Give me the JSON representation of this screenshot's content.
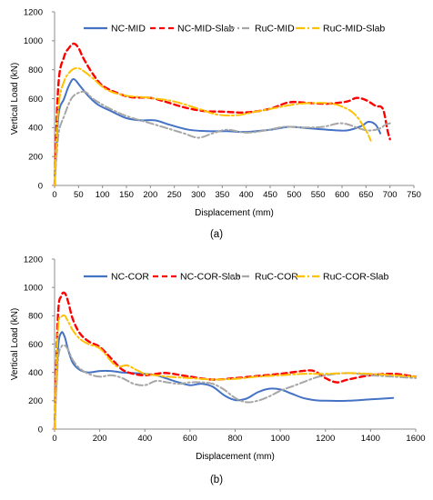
{
  "chart_data": [
    {
      "type": "line",
      "caption": "(a)",
      "xlabel": "Displacement (mm)",
      "ylabel": "Vertical Load (kN)",
      "xlim": [
        0,
        750
      ],
      "ylim": [
        0,
        1200
      ],
      "xticks": [
        0,
        50,
        100,
        150,
        200,
        250,
        300,
        350,
        400,
        450,
        500,
        550,
        600,
        650,
        700,
        750
      ],
      "yticks": [
        0,
        200,
        400,
        600,
        800,
        1000,
        1200
      ],
      "grid": false,
      "legend": "top",
      "series": [
        {
          "name": "NC-MID",
          "color": "#4472C4",
          "dash": "solid",
          "x": [
            0,
            8,
            20,
            30,
            40,
            55,
            70,
            90,
            120,
            150,
            180,
            210,
            240,
            280,
            320,
            360,
            400,
            450,
            490,
            530,
            570,
            610,
            640,
            655,
            670,
            680
          ],
          "y": [
            0,
            480,
            600,
            690,
            735,
            680,
            620,
            560,
            510,
            465,
            450,
            450,
            420,
            385,
            375,
            375,
            370,
            385,
            405,
            395,
            385,
            380,
            410,
            440,
            420,
            360
          ]
        },
        {
          "name": "NC-MID-Slab",
          "color": "#FF0000",
          "dash": "6,4",
          "x": [
            0,
            8,
            20,
            30,
            40,
            50,
            60,
            80,
            100,
            130,
            160,
            200,
            230,
            270,
            310,
            350,
            400,
            450,
            490,
            530,
            570,
            610,
            630,
            650,
            670,
            685,
            695,
            700
          ],
          "y": [
            0,
            700,
            890,
            950,
            980,
            950,
            880,
            770,
            690,
            640,
            610,
            605,
            580,
            540,
            515,
            510,
            505,
            530,
            575,
            570,
            565,
            580,
            605,
            590,
            550,
            530,
            380,
            320
          ]
        },
        {
          "name": "RuC-MID",
          "color": "#A6A6A6",
          "dash": "8,3,2,3",
          "x": [
            0,
            8,
            20,
            35,
            50,
            65,
            80,
            110,
            150,
            200,
            240,
            270,
            300,
            330,
            360,
            400,
            440,
            480,
            520,
            560,
            600,
            640,
            660,
            680,
            690,
            700
          ],
          "y": [
            0,
            350,
            480,
            600,
            640,
            645,
            600,
            540,
            480,
            430,
            390,
            360,
            330,
            360,
            385,
            365,
            380,
            405,
            400,
            405,
            430,
            390,
            380,
            395,
            420,
            430
          ]
        },
        {
          "name": "RuC-MID-Slab",
          "color": "#FFC000",
          "dash": "10,3,2,3",
          "x": [
            0,
            8,
            20,
            35,
            50,
            65,
            80,
            110,
            150,
            200,
            250,
            300,
            340,
            380,
            420,
            460,
            500,
            540,
            580,
            610,
            630,
            650,
            660
          ],
          "y": [
            0,
            540,
            720,
            795,
            810,
            780,
            740,
            660,
            620,
            605,
            580,
            530,
            490,
            485,
            510,
            535,
            560,
            570,
            565,
            530,
            480,
            380,
            310
          ]
        }
      ]
    },
    {
      "type": "line",
      "caption": "(b)",
      "xlabel": "Displacement (mm)",
      "ylabel": "Vertical Load (kN)",
      "xlim": [
        0,
        1600
      ],
      "ylim": [
        0,
        1200
      ],
      "xticks": [
        0,
        200,
        400,
        600,
        800,
        1000,
        1200,
        1400,
        1600
      ],
      "yticks": [
        0,
        200,
        400,
        600,
        800,
        1000,
        1200
      ],
      "grid": false,
      "legend": "top",
      "series": [
        {
          "name": "NC-COR",
          "color": "#4472C4",
          "dash": "solid",
          "x": [
            0,
            15,
            30,
            45,
            60,
            80,
            110,
            150,
            200,
            250,
            300,
            350,
            400,
            450,
            500,
            550,
            600,
            650,
            700,
            750,
            800,
            850,
            900,
            950,
            1000,
            1050,
            1100,
            1150,
            1200,
            1300,
            1400,
            1500
          ],
          "y": [
            0,
            560,
            680,
            650,
            560,
            470,
            420,
            400,
            410,
            410,
            400,
            395,
            390,
            380,
            355,
            330,
            310,
            320,
            300,
            240,
            205,
            215,
            260,
            285,
            280,
            250,
            220,
            205,
            200,
            200,
            210,
            220
          ]
        },
        {
          "name": "NC-COR-Slab",
          "color": "#FF0000",
          "dash": "6,4",
          "x": [
            0,
            15,
            30,
            45,
            60,
            80,
            110,
            150,
            200,
            250,
            300,
            350,
            400,
            450,
            500,
            600,
            700,
            800,
            900,
            1000,
            1100,
            1150,
            1200,
            1250,
            1300,
            1400,
            1500,
            1600
          ],
          "y": [
            0,
            800,
            940,
            960,
            900,
            780,
            680,
            620,
            580,
            500,
            420,
            390,
            380,
            390,
            395,
            370,
            350,
            360,
            375,
            390,
            410,
            410,
            360,
            330,
            350,
            380,
            390,
            370
          ]
        },
        {
          "name": "RuC-COR",
          "color": "#A6A6A6",
          "dash": "8,3,2,3",
          "x": [
            0,
            15,
            30,
            45,
            60,
            80,
            110,
            150,
            200,
            250,
            300,
            350,
            400,
            450,
            500,
            550,
            600,
            650,
            700,
            750,
            800,
            850,
            900,
            950,
            1000,
            1050,
            1100,
            1150,
            1200,
            1300,
            1400,
            1500,
            1600
          ],
          "y": [
            0,
            480,
            580,
            590,
            560,
            490,
            430,
            390,
            370,
            380,
            360,
            320,
            310,
            340,
            330,
            320,
            330,
            330,
            320,
            280,
            220,
            190,
            200,
            230,
            270,
            300,
            330,
            360,
            380,
            395,
            380,
            370,
            360
          ]
        },
        {
          "name": "RuC-COR-Slab",
          "color": "#FFC000",
          "dash": "10,3,2,3",
          "x": [
            0,
            15,
            30,
            45,
            60,
            80,
            110,
            150,
            200,
            250,
            280,
            320,
            360,
            400,
            450,
            500,
            600,
            700,
            800,
            900,
            1000,
            1100,
            1200,
            1300,
            1400,
            1500,
            1600
          ],
          "y": [
            0,
            700,
            790,
            800,
            760,
            700,
            640,
            600,
            570,
            480,
            440,
            450,
            420,
            390,
            380,
            370,
            360,
            350,
            355,
            370,
            380,
            390,
            390,
            395,
            390,
            380,
            370
          ]
        }
      ]
    }
  ]
}
